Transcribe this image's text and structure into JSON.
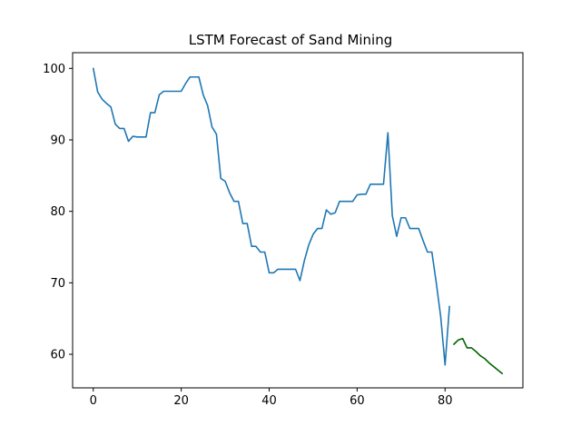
{
  "chart_data": {
    "type": "line",
    "title": "LSTM Forecast of Sand Mining",
    "xlabel": "",
    "ylabel": "",
    "xlim": [
      -4.7,
      97.7
    ],
    "ylim": [
      55.3,
      102.2
    ],
    "xticks": [
      0,
      20,
      40,
      60,
      80
    ],
    "yticks": [
      60,
      70,
      80,
      90,
      100
    ],
    "grid": false,
    "legend": false,
    "series": [
      {
        "color": "#1f77b4",
        "x": [
          0,
          1,
          2,
          3,
          4,
          5,
          6,
          7,
          8,
          9,
          10,
          11,
          12,
          13,
          14,
          15,
          16,
          17,
          18,
          19,
          20,
          21,
          22,
          23,
          24,
          25,
          26,
          27,
          28,
          29,
          30,
          31,
          32,
          33,
          34,
          35,
          36,
          37,
          38,
          39,
          40,
          41,
          42,
          43,
          44,
          45,
          46,
          47,
          48,
          49,
          50,
          51,
          52,
          53,
          54,
          55,
          56,
          57,
          58,
          59,
          60,
          61,
          62,
          63,
          64,
          65,
          66,
          67,
          68,
          69,
          70,
          71,
          72,
          73,
          74,
          75,
          76,
          77,
          78,
          79,
          80,
          81
        ],
        "y": [
          100,
          96.7,
          95.7,
          95.1,
          94.6,
          92.2,
          91.6,
          91.6,
          89.8,
          90.5,
          90.4,
          90.4,
          90.4,
          93.8,
          93.8,
          96.3,
          96.8,
          96.8,
          96.8,
          96.8,
          96.8,
          97.9,
          98.8,
          98.8,
          98.8,
          96.3,
          94.8,
          91.8,
          90.8,
          84.6,
          84.2,
          82.6,
          81.4,
          81.4,
          78.3,
          78.3,
          75.1,
          75.1,
          74.3,
          74.3,
          71.4,
          71.4,
          71.9,
          71.9,
          71.9,
          71.9,
          71.9,
          70.3,
          73.1,
          75.3,
          76.8,
          77.6,
          77.6,
          80.2,
          79.6,
          79.8,
          81.4,
          81.4,
          81.4,
          81.4,
          82.3,
          82.4,
          82.4,
          83.8,
          83.8,
          83.8,
          83.8,
          91.0,
          79.4,
          76.5,
          79.1,
          79.1,
          77.6,
          77.6,
          77.6,
          75.9,
          74.3,
          74.3,
          70.0,
          65.3,
          58.5,
          66.7
        ]
      },
      {
        "color": "#006400",
        "x": [
          82,
          83,
          84,
          85,
          86,
          87,
          88,
          89,
          90,
          91,
          92,
          93
        ],
        "y": [
          61.4,
          62.0,
          62.2,
          60.9,
          60.9,
          60.4,
          59.8,
          59.4,
          58.8,
          58.3,
          57.8,
          57.3
        ]
      }
    ]
  }
}
